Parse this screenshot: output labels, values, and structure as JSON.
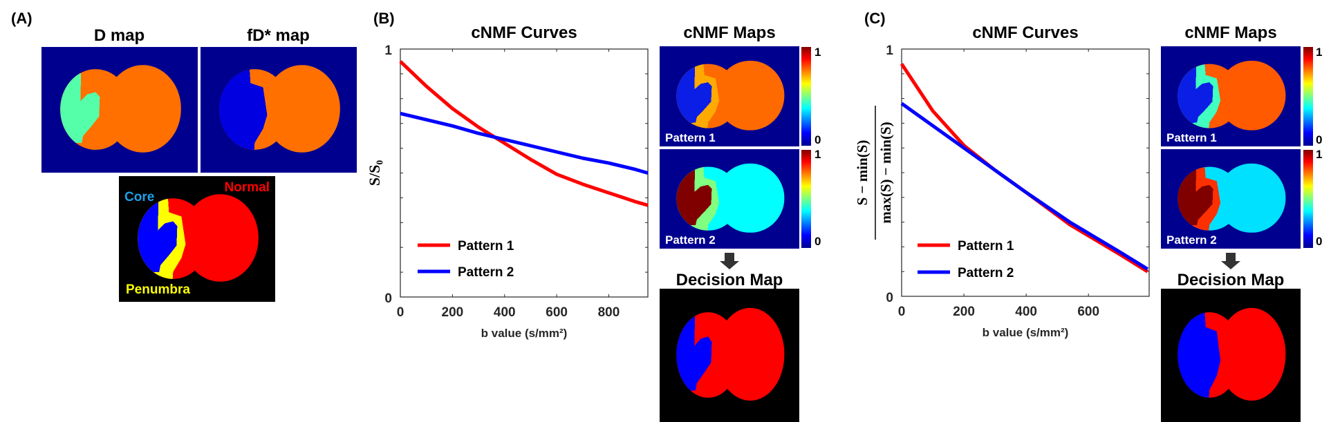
{
  "panels": {
    "A": {
      "label": "(A)",
      "d_map_title": "D map",
      "fd_map_title": "fD* map",
      "region_labels": {
        "core": "Core",
        "normal": "Normal",
        "penumbra": "Penumbra"
      },
      "region_label_colors": {
        "core": "#1ea0e6",
        "normal": "#ff0000",
        "penumbra": "#ffff00"
      }
    },
    "B": {
      "label": "(B)",
      "maps_title": "cNMF Maps",
      "pattern1_label": "Pattern 1",
      "pattern2_label": "Pattern 2",
      "decision_title": "Decision Map",
      "colorbar": {
        "max": "1",
        "min": "0",
        "colormap": "jet"
      }
    },
    "C": {
      "label": "(C)",
      "maps_title": "cNMF Maps",
      "pattern1_label": "Pattern 1",
      "pattern2_label": "Pattern 2",
      "decision_title": "Decision Map",
      "colorbar": {
        "max": "1",
        "min": "0",
        "colormap": "jet"
      }
    }
  },
  "map_colors": {
    "d_map": {
      "bg": "#00008f",
      "core": "#55ffaa",
      "penumbra": "#ff7000",
      "normal": "#ff7000"
    },
    "fd_map": {
      "bg": "#00008f",
      "core": "#0000e0",
      "penumbra": "#0000e0",
      "normal": "#ff7000"
    },
    "ground_truth": {
      "bg": "#000000",
      "core": "#0000ff",
      "penumbra": "#ffff00",
      "normal": "#ff0000"
    },
    "B_pattern1": {
      "bg": "#00008f",
      "core": "#0a1ee6",
      "penumbra": "#ffaa00",
      "normal": "#ff6a00"
    },
    "B_pattern2": {
      "bg": "#00008f",
      "core": "#800000",
      "penumbra": "#80ff80",
      "normal": "#00ffff"
    },
    "B_decision": {
      "bg": "#000000",
      "core": "#0000ff",
      "penumbra": "#ff0000",
      "normal": "#ff0000"
    },
    "C_pattern1": {
      "bg": "#00008f",
      "core": "#0a1ee6",
      "penumbra": "#40ffc0",
      "normal": "#ff5a00"
    },
    "C_pattern2": {
      "bg": "#00008f",
      "core": "#800000",
      "penumbra": "#ff3000",
      "normal": "#00e0ff"
    },
    "C_decision": {
      "bg": "#000000",
      "core": "#0000ff",
      "penumbra": "#0000ff",
      "normal": "#ff0000"
    }
  },
  "chart_data": [
    {
      "type": "line",
      "panel": "B",
      "title": "cNMF Curves",
      "xlabel": "b value (s/mm²)",
      "ylabel": "S/S₀",
      "xlim": [
        0,
        950
      ],
      "ylim": [
        0,
        1
      ],
      "xticks": [
        0,
        200,
        400,
        600,
        800
      ],
      "yticks": [
        0,
        1
      ],
      "yminor_step": 0.1,
      "grid": false,
      "legend": "bottom-left",
      "series": [
        {
          "name": "Pattern 1",
          "color": "#ff0000",
          "x": [
            0,
            100,
            200,
            300,
            400,
            500,
            600,
            700,
            800,
            900,
            950
          ],
          "y": [
            0.95,
            0.85,
            0.76,
            0.685,
            0.62,
            0.555,
            0.495,
            0.455,
            0.42,
            0.385,
            0.37
          ]
        },
        {
          "name": "Pattern 2",
          "color": "#0000ff",
          "x": [
            0,
            100,
            200,
            300,
            400,
            500,
            600,
            700,
            800,
            900,
            950
          ],
          "y": [
            0.74,
            0.715,
            0.69,
            0.66,
            0.635,
            0.61,
            0.585,
            0.56,
            0.54,
            0.515,
            0.5
          ]
        }
      ]
    },
    {
      "type": "line",
      "panel": "C",
      "title": "cNMF Curves",
      "xlabel": "b value (s/mm²)",
      "ylabel_numerator": "S − min(S)",
      "ylabel_denominator": "max(S) − min(S)",
      "xlim": [
        0,
        795
      ],
      "ylim": [
        0,
        1
      ],
      "xticks": [
        0,
        200,
        400,
        600
      ],
      "yticks": [
        0,
        1
      ],
      "yminor_step": 0.1,
      "grid": false,
      "legend": "bottom-left",
      "series": [
        {
          "name": "Pattern 1",
          "color": "#ff0000",
          "x": [
            0,
            100,
            200,
            300,
            400,
            540,
            700,
            790
          ],
          "y": [
            0.94,
            0.75,
            0.61,
            0.51,
            0.42,
            0.29,
            0.17,
            0.1
          ]
        },
        {
          "name": "Pattern 2",
          "color": "#0000ff",
          "x": [
            0,
            100,
            200,
            300,
            400,
            540,
            700,
            790
          ],
          "y": [
            0.78,
            0.69,
            0.6,
            0.51,
            0.42,
            0.3,
            0.18,
            0.11
          ]
        }
      ]
    }
  ]
}
